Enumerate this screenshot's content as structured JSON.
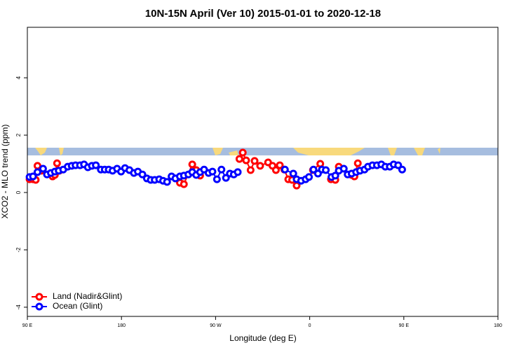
{
  "chart_data": {
    "type": "line",
    "title": "10N-15N April (Ver 10)   2015-01-01 to 2020-12-18",
    "x_label": "Longitude (deg E)",
    "y_label": "XCO2 - MLO trend (ppm)",
    "xlim": [
      90,
      540
    ],
    "ylim": [
      -4.32,
      5.76
    ],
    "xticks": [
      {
        "value": 90,
        "label": "90 E"
      },
      180,
      {
        "value": 270,
        "label": "90 W"
      },
      {
        "value": 360,
        "label": "0"
      },
      {
        "value": 450,
        "label": "90 E"
      },
      {
        "value": 540,
        "label": "180"
      }
    ],
    "yticks": [
      -4,
      -2,
      0,
      2,
      4
    ],
    "legend": "bottom-left",
    "series": [
      {
        "name": "Land (Nadir&Glint)",
        "color": "#ff0000",
        "x": [
          92.1,
          95.4,
          98.0,
          99.7,
          103.4,
          114.1,
          116.3,
          118.4,
          120.6,
          null,
          235.9,
          239.7,
          247.7,
          251.5,
          255.2,
          null,
          292.8,
          296.0,
          299.2,
          303.5,
          307.3,
          312.6,
          320.2,
          324.4,
          327.7,
          331.4,
          335.7,
          339.5,
          343.2,
          347.5,
          null,
          363.1,
          370.1,
          null,
          380.3,
          384.5,
          387.8,
          null,
          400.1,
          402.8,
          406.0
        ],
        "values": [
          0.46,
          0.46,
          0.44,
          0.93,
          0.76,
          0.56,
          0.61,
          1.02,
          0.76,
          null,
          0.34,
          0.29,
          0.98,
          0.78,
          0.59,
          null,
          1.17,
          1.39,
          1.12,
          0.78,
          1.1,
          0.93,
          1.05,
          0.93,
          0.78,
          0.95,
          0.8,
          0.46,
          0.44,
          0.24,
          null,
          0.78,
          1.0,
          null,
          0.46,
          0.44,
          0.9,
          null,
          0.61,
          0.56,
          1.02
        ]
      },
      {
        "name": "Ocean (Glint)",
        "color": "#0000ff",
        "x": [
          92.1,
          95.4,
          99.7,
          105.0,
          108.8,
          112.5,
          116.3,
          120.0,
          124.3,
          128.6,
          132.4,
          136.1,
          140.4,
          144.2,
          147.9,
          151.7,
          155.5,
          160.3,
          164.0,
          167.8,
          171.5,
          175.8,
          179.6,
          183.4,
          187.6,
          191.9,
          195.7,
          200.0,
          204.3,
          208.0,
          211.8,
          216.1,
          219.8,
          223.6,
          227.9,
          231.6,
          235.9,
          239.7,
          244.0,
          247.7,
          251.5,
          255.2,
          259.0,
          263.3,
          267.0,
          271.3,
          275.6,
          279.9,
          283.7,
          287.4,
          291.2,
          null,
          336.3,
          344.3,
          347.5,
          351.8,
          356.1,
          359.3,
          363.6,
          367.9,
          371.7,
          375.4,
          380.8,
          384.5,
          387.8,
          392.6,
          396.3,
          400.1,
          404.4,
          408.1,
          412.4,
          415.7,
          420.0,
          424.3,
          428.5,
          432.3,
          436.6,
          440.3,
          444.6,
          448.4
        ],
        "values": [
          0.54,
          0.56,
          0.71,
          0.83,
          0.63,
          0.68,
          0.73,
          0.76,
          0.8,
          0.9,
          0.93,
          0.95,
          0.95,
          0.98,
          0.88,
          0.93,
          0.95,
          0.8,
          0.8,
          0.8,
          0.76,
          0.83,
          0.73,
          0.85,
          0.78,
          0.68,
          0.73,
          0.63,
          0.49,
          0.44,
          0.44,
          0.46,
          0.41,
          0.37,
          0.56,
          0.49,
          0.56,
          0.59,
          0.63,
          0.71,
          0.61,
          0.71,
          0.8,
          0.68,
          0.73,
          0.46,
          0.8,
          0.51,
          0.66,
          0.63,
          0.71,
          null,
          0.8,
          0.66,
          0.46,
          0.41,
          0.46,
          0.54,
          0.8,
          0.66,
          0.8,
          0.78,
          0.54,
          0.59,
          0.76,
          0.83,
          0.63,
          0.66,
          0.71,
          0.76,
          0.8,
          0.9,
          0.95,
          0.95,
          0.98,
          0.9,
          0.9,
          0.98,
          0.95,
          0.8
        ]
      }
    ]
  }
}
